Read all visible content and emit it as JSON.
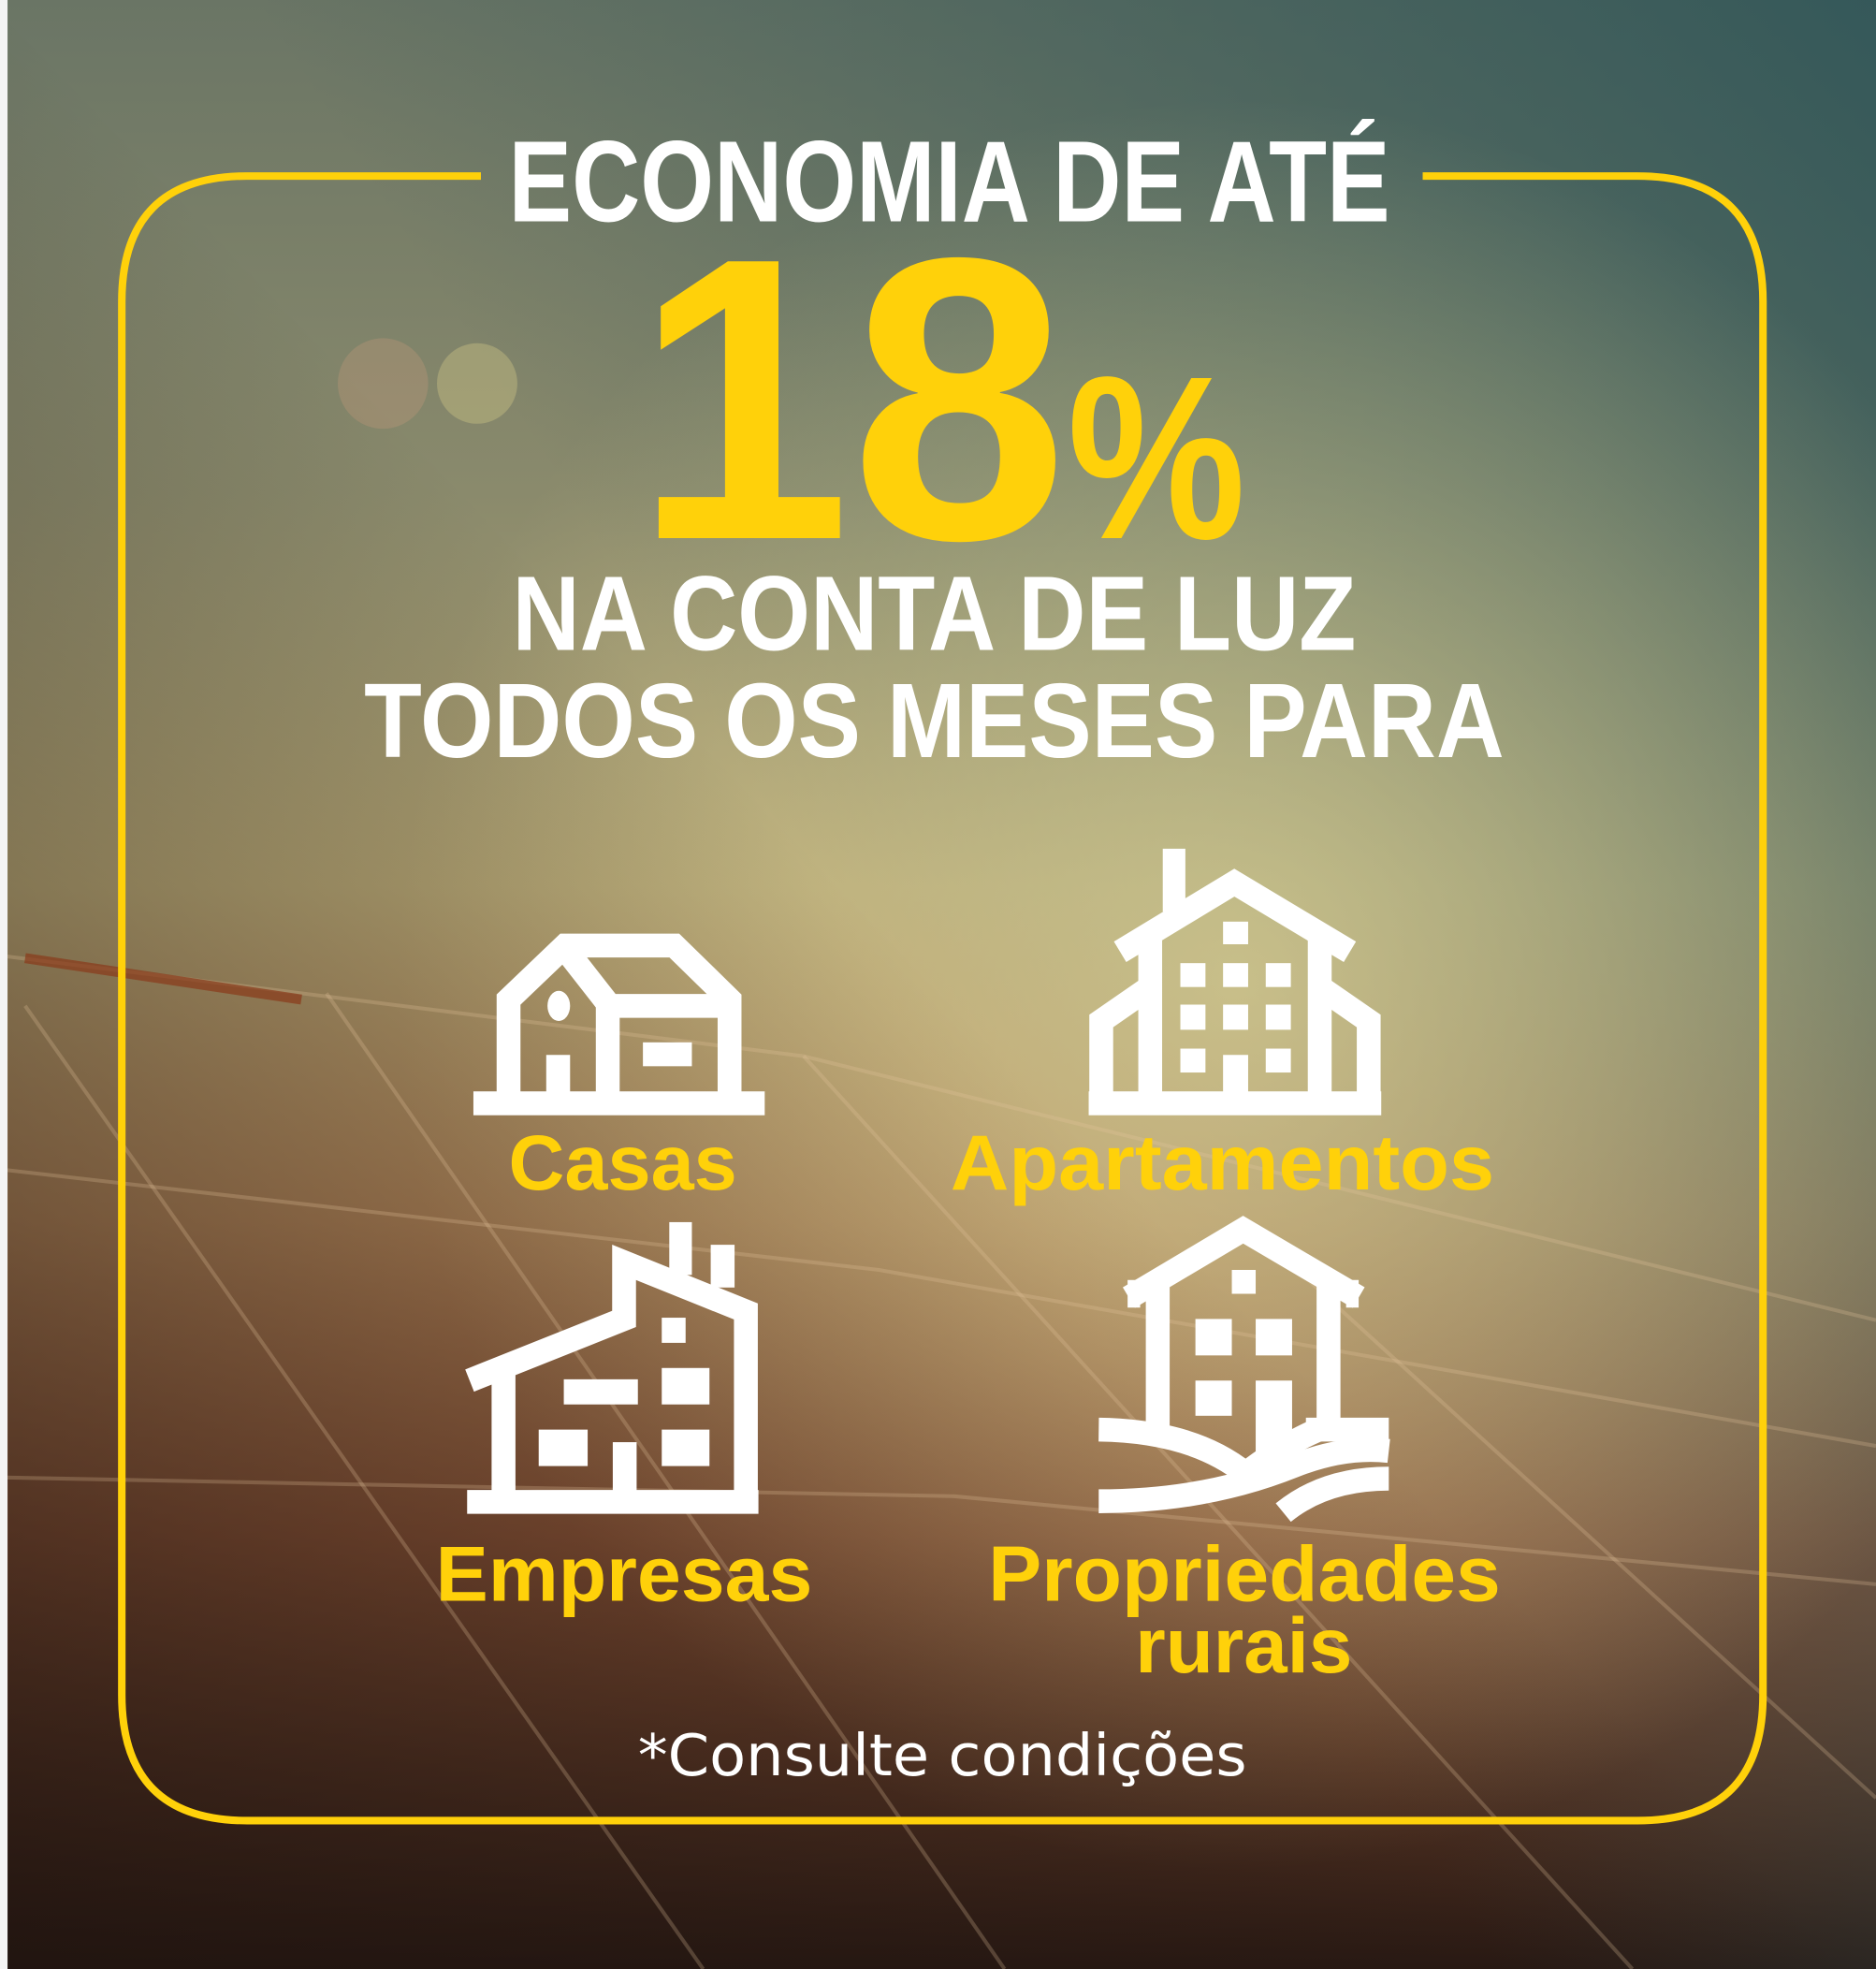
{
  "colors": {
    "accent_yellow": "#FFD10A",
    "text_white": "#FFFFFF"
  },
  "headline": {
    "top": "ECONOMIA DE ATÉ",
    "value": "18",
    "unit": "%",
    "line1": "NA CONTA DE LUZ",
    "line2": "TODOS OS MESES PARA"
  },
  "categories": [
    {
      "label": "Casas",
      "icon": "house-icon"
    },
    {
      "label": "Apartamentos",
      "icon": "apartment-building-icon"
    },
    {
      "label": "Empresas",
      "icon": "factory-icon"
    },
    {
      "label_line1": "Propriedades",
      "label_line2": "rurais",
      "icon": "farm-property-icon"
    }
  ],
  "footnote": "*Consulte condições"
}
